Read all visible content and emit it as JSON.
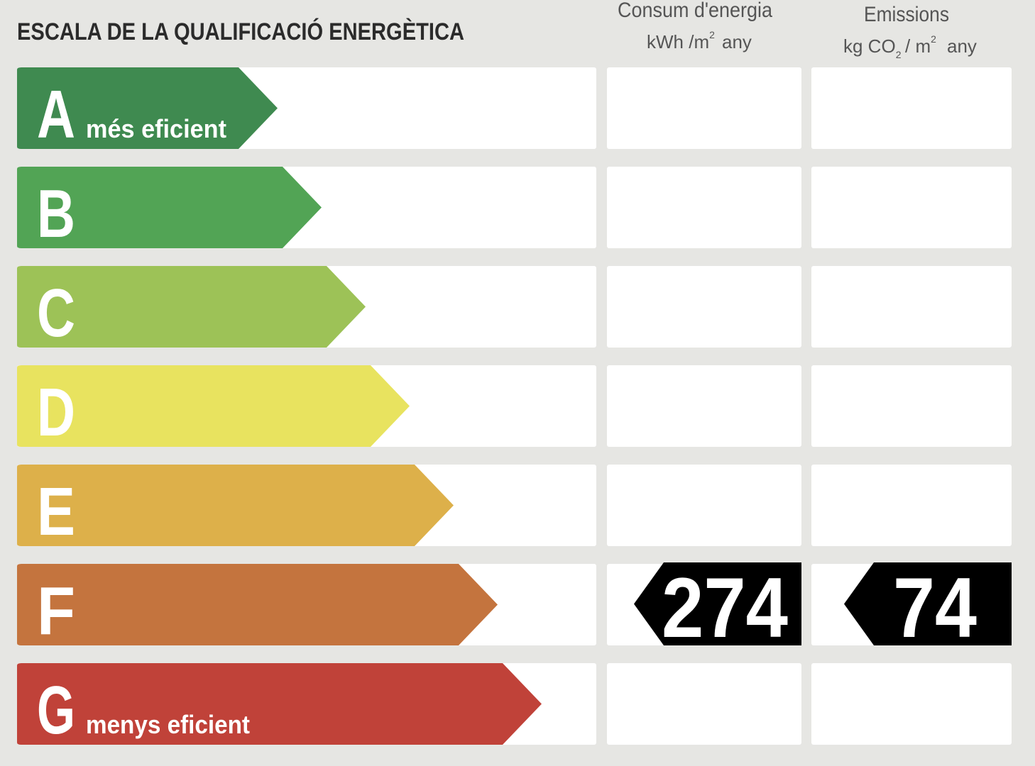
{
  "header": {
    "title": "ESCALA DE LA QUALIFICACIÓ ENERGÈTICA",
    "consumption": {
      "title": "Consum d'energia",
      "unit": [
        "kWh /m",
        "2",
        "any"
      ]
    },
    "emissions": {
      "title": "Emissions",
      "unit": [
        "kg CO",
        "2",
        "/ m",
        "2",
        "any"
      ]
    }
  },
  "rows": [
    {
      "letter": "A",
      "label": "més eficient",
      "color": "#3f8a50"
    },
    {
      "letter": "B",
      "color": "#52a455"
    },
    {
      "letter": "C",
      "color": "#9dc257"
    },
    {
      "letter": "D",
      "color": "#e8e35f"
    },
    {
      "letter": "E",
      "color": "#ddb04a"
    },
    {
      "letter": "F",
      "color": "#c4743e"
    },
    {
      "letter": "G",
      "label": "menys eficient",
      "color": "#c04239"
    }
  ],
  "rating": {
    "class": "F",
    "consumption": 274,
    "emissions": 74
  }
}
